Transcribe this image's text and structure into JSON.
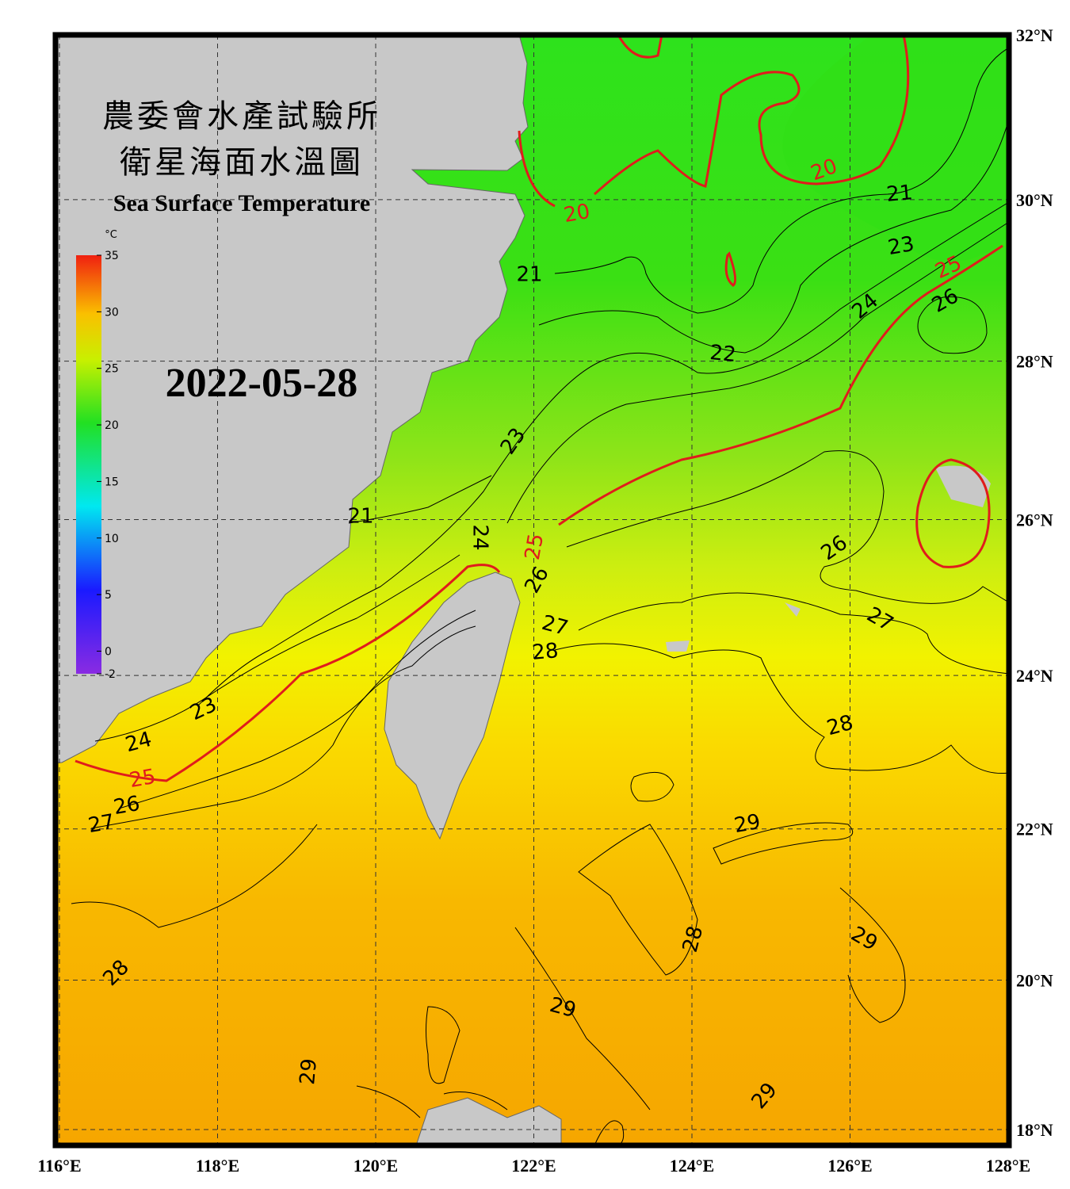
{
  "map": {
    "title_zh_1": "農委會水產試驗所",
    "title_zh_2": "衛星海面水溫圖",
    "title_en": "Sea Surface Temperature",
    "date": "2022-05-28",
    "xlim": [
      116,
      128
    ],
    "ylim": [
      18,
      32
    ],
    "xticks": [
      {
        "value": 116,
        "label": "116°E"
      },
      {
        "value": 118,
        "label": "118°E"
      },
      {
        "value": 120,
        "label": "120°E"
      },
      {
        "value": 122,
        "label": "122°E"
      },
      {
        "value": 124,
        "label": "124°E"
      },
      {
        "value": 126,
        "label": "126°E"
      },
      {
        "value": 128,
        "label": "128°E"
      }
    ],
    "yticks": [
      {
        "value": 18,
        "label": "18°N"
      },
      {
        "value": 20,
        "label": "20°N"
      },
      {
        "value": 22,
        "label": "22°N"
      },
      {
        "value": 24,
        "label": "24°N"
      },
      {
        "value": 26,
        "label": "26°N"
      },
      {
        "value": 28,
        "label": "28°N"
      },
      {
        "value": 30,
        "label": "30°N"
      },
      {
        "value": 32,
        "label": "32°N"
      }
    ],
    "colorbar": {
      "unit": "°C",
      "lim": [
        -2,
        35
      ],
      "ticks": [
        -2,
        0,
        5,
        10,
        15,
        20,
        25,
        30,
        35
      ]
    },
    "contours": [
      {
        "level": 20,
        "color": "#e01c1c"
      },
      {
        "level": 21,
        "color": "#000000"
      },
      {
        "level": 22,
        "color": "#000000"
      },
      {
        "level": 23,
        "color": "#000000"
      },
      {
        "level": 24,
        "color": "#000000"
      },
      {
        "level": 25,
        "color": "#e01c1c"
      },
      {
        "level": 26,
        "color": "#000000"
      },
      {
        "level": 27,
        "color": "#000000"
      },
      {
        "level": 28,
        "color": "#000000"
      },
      {
        "level": 29,
        "color": "#000000"
      }
    ]
  }
}
